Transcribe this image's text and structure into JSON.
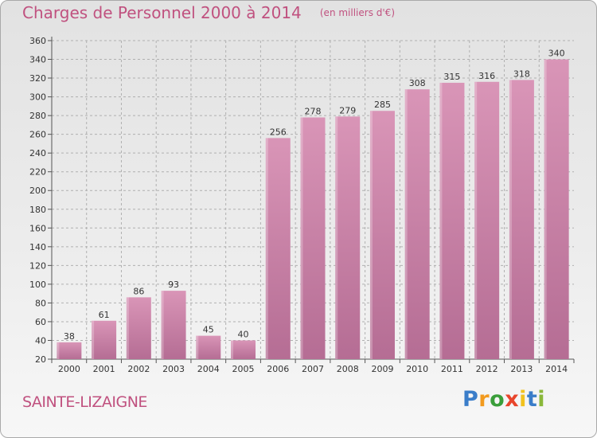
{
  "chart_data": {
    "type": "bar",
    "title": "Charges de Personnel 2000 à 2014",
    "subtitle": "(en milliers d'€)",
    "categories": [
      "2000",
      "2001",
      "2002",
      "2003",
      "2004",
      "2005",
      "2006",
      "2007",
      "2008",
      "2009",
      "2010",
      "2011",
      "2012",
      "2013",
      "2014"
    ],
    "values": [
      38,
      61,
      86,
      93,
      45,
      40,
      256,
      278,
      279,
      285,
      308,
      315,
      316,
      318,
      340
    ],
    "ylim": [
      20,
      360
    ],
    "yticks": [
      "20",
      "40",
      "60",
      "80",
      "100",
      "120",
      "140",
      "160",
      "180",
      "200",
      "220",
      "240",
      "260",
      "280",
      "300",
      "320",
      "340",
      "360"
    ],
    "grid": true,
    "legend": "none",
    "bar_color": "#d995b7",
    "bar_color_dark": "#b56d94",
    "grid_color": "#b0b0b0"
  },
  "commune_name": "SAINTE-LIZAIGNE",
  "brand": {
    "letters": [
      "P",
      "r",
      "o",
      "x",
      "i",
      "t",
      "i"
    ],
    "colors": [
      "#3a7dc9",
      "#f29a1e",
      "#3a9e3a",
      "#e8452c",
      "#f2c21e",
      "#3a7dc9",
      "#8ab83a"
    ]
  }
}
